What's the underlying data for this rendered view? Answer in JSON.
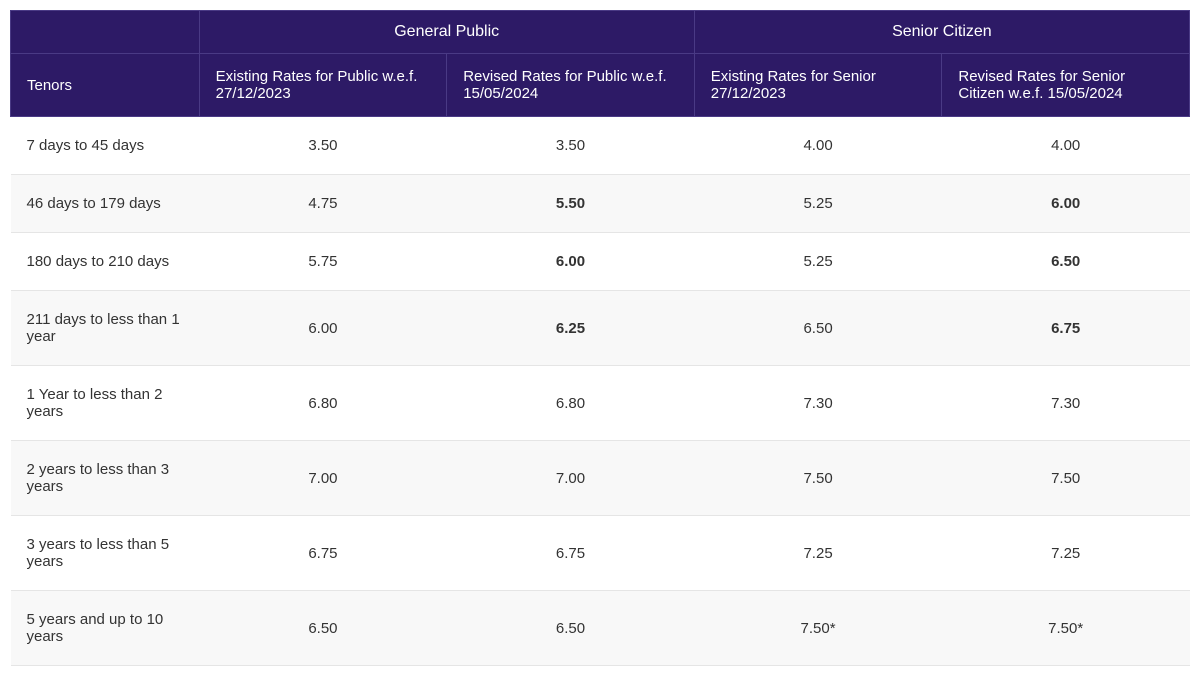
{
  "colors": {
    "header_bg": "#2d1a66",
    "header_border": "#4a3a85",
    "header_text": "#ffffff",
    "row_border": "#e5e5e5",
    "row_alt_bg": "#f8f8f8",
    "body_text": "#333333"
  },
  "typography": {
    "font_family": "Segoe UI, Arial, sans-serif",
    "header_fontsize_pt": 11,
    "body_fontsize_pt": 11
  },
  "table": {
    "tenors_label": "Tenors",
    "groups": [
      {
        "label": "General Public",
        "span": 2
      },
      {
        "label": "Senior Citizen",
        "span": 2
      }
    ],
    "columns": [
      "Existing Rates for Public w.e.f. 27/12/2023",
      "Revised Rates for Public w.e.f. 15/05/2024",
      "Existing Rates for Senior 27/12/2023",
      "Revised Rates for Senior Citizen w.e.f. 15/05/2024"
    ],
    "rows": [
      {
        "tenor": "7 days to 45 days",
        "values": [
          "3.50",
          "3.50",
          "4.00",
          "4.00"
        ],
        "bold": [
          false,
          false,
          false,
          false
        ]
      },
      {
        "tenor": "46 days to 179 days",
        "values": [
          "4.75",
          "5.50",
          "5.25",
          "6.00"
        ],
        "bold": [
          false,
          true,
          false,
          true
        ]
      },
      {
        "tenor": "180 days to 210 days",
        "values": [
          "5.75",
          "6.00",
          "5.25",
          "6.50"
        ],
        "bold": [
          false,
          true,
          false,
          true
        ]
      },
      {
        "tenor": "211 days to less than 1 year",
        "values": [
          "6.00",
          "6.25",
          "6.50",
          "6.75"
        ],
        "bold": [
          false,
          true,
          false,
          true
        ]
      },
      {
        "tenor": "1 Year to less than 2 years",
        "values": [
          "6.80",
          "6.80",
          "7.30",
          "7.30"
        ],
        "bold": [
          false,
          false,
          false,
          false
        ]
      },
      {
        "tenor": "2 years to less than 3 years",
        "values": [
          "7.00",
          "7.00",
          "7.50",
          "7.50"
        ],
        "bold": [
          false,
          false,
          false,
          false
        ]
      },
      {
        "tenor": "3 years to less than 5 years",
        "values": [
          "6.75",
          "6.75",
          "7.25",
          "7.25"
        ],
        "bold": [
          false,
          false,
          false,
          false
        ]
      },
      {
        "tenor": "5 years and up to 10 years",
        "values": [
          "6.50",
          "6.50",
          "7.50*",
          "7.50*"
        ],
        "bold": [
          false,
          false,
          false,
          false
        ]
      }
    ]
  }
}
